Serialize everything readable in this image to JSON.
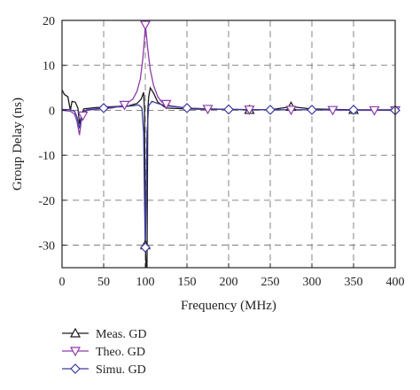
{
  "chart_data": {
    "type": "line",
    "xlabel": "Frequency (MHz)",
    "ylabel": "Group Delay (ns)",
    "xlim": [
      0,
      400
    ],
    "ylim": [
      -35,
      20
    ],
    "x_ticks": [
      0,
      50,
      100,
      150,
      200,
      250,
      300,
      350,
      400
    ],
    "y_ticks": [
      20,
      10,
      0,
      -10,
      -20,
      -30
    ],
    "grid": true,
    "legend_position": "bottom-left",
    "series": [
      {
        "name": "Meas. GD",
        "color": "#1a1a1a",
        "marker": "triangle-up",
        "points": [
          [
            0,
            4.5
          ],
          [
            3,
            3.5
          ],
          [
            7,
            3
          ],
          [
            10,
            0
          ],
          [
            12,
            2
          ],
          [
            16,
            1.8
          ],
          [
            19,
            0.5
          ],
          [
            21,
            -3
          ],
          [
            23,
            -1.5
          ],
          [
            26,
            0.3
          ],
          [
            40,
            0.6
          ],
          [
            60,
            0.8
          ],
          [
            80,
            1
          ],
          [
            90,
            1.5
          ],
          [
            95,
            2.5
          ],
          [
            98,
            4
          ],
          [
            99,
            0
          ],
          [
            100,
            -30
          ],
          [
            101,
            -35
          ],
          [
            102,
            -35
          ],
          [
            103,
            0
          ],
          [
            104,
            3
          ],
          [
            106,
            5
          ],
          [
            110,
            3.8
          ],
          [
            115,
            1.8
          ],
          [
            125,
            0.5
          ],
          [
            150,
            0.3
          ],
          [
            175,
            0.2
          ],
          [
            200,
            0.2
          ],
          [
            225,
            0.1
          ],
          [
            250,
            0.1
          ],
          [
            275,
            0.8
          ],
          [
            300,
            0.3
          ],
          [
            325,
            0.2
          ],
          [
            350,
            0.1
          ],
          [
            375,
            0.1
          ],
          [
            400,
            0.1
          ]
        ],
        "markers_x": [
          100,
          225,
          275,
          350
        ]
      },
      {
        "name": "Theo. GD",
        "color": "#8e3ba8",
        "marker": "triangle-down",
        "points": [
          [
            0,
            0
          ],
          [
            10,
            -0.2
          ],
          [
            15,
            -0.8
          ],
          [
            18,
            -2.5
          ],
          [
            21,
            -5.5
          ],
          [
            23,
            -2.5
          ],
          [
            26,
            -0.5
          ],
          [
            30,
            0
          ],
          [
            40,
            0.2
          ],
          [
            60,
            0.5
          ],
          [
            75,
            1.2
          ],
          [
            85,
            2.5
          ],
          [
            90,
            4.2
          ],
          [
            94,
            7
          ],
          [
            97,
            11.5
          ],
          [
            99,
            16
          ],
          [
            100,
            19
          ],
          [
            101,
            17.5
          ],
          [
            103,
            13.5
          ],
          [
            106,
            9
          ],
          [
            110,
            5.5
          ],
          [
            115,
            3
          ],
          [
            120,
            1.8
          ],
          [
            130,
            1
          ],
          [
            150,
            0.5
          ],
          [
            175,
            0.3
          ],
          [
            200,
            0.2
          ],
          [
            250,
            0.1
          ],
          [
            300,
            0.1
          ],
          [
            350,
            0
          ],
          [
            400,
            0
          ]
        ],
        "markers_x": [
          25,
          75,
          100,
          125,
          175,
          225,
          275,
          325,
          375,
          400
        ]
      },
      {
        "name": "Simu. GD",
        "color": "#3b3a9e",
        "marker": "diamond",
        "points": [
          [
            0,
            0.2
          ],
          [
            10,
            0.1
          ],
          [
            15,
            -0.2
          ],
          [
            18,
            -1.5
          ],
          [
            21,
            -4
          ],
          [
            23,
            -2
          ],
          [
            26,
            -0.3
          ],
          [
            30,
            0.1
          ],
          [
            40,
            0.3
          ],
          [
            50,
            0.5
          ],
          [
            60,
            0.7
          ],
          [
            75,
            0.8
          ],
          [
            85,
            1
          ],
          [
            92,
            1.2
          ],
          [
            96,
            0.5
          ],
          [
            98,
            -5
          ],
          [
            99,
            -20
          ],
          [
            100,
            -30.5
          ],
          [
            101,
            -20
          ],
          [
            102,
            -5
          ],
          [
            104,
            1
          ],
          [
            108,
            2
          ],
          [
            115,
            1.5
          ],
          [
            125,
            1
          ],
          [
            150,
            0.5
          ],
          [
            175,
            0.3
          ],
          [
            200,
            0.2
          ],
          [
            250,
            0.1
          ],
          [
            300,
            0.1
          ],
          [
            350,
            0.1
          ],
          [
            400,
            0
          ]
        ],
        "markers_x": [
          50,
          100,
          150,
          200,
          250,
          300,
          350,
          400
        ]
      }
    ]
  }
}
